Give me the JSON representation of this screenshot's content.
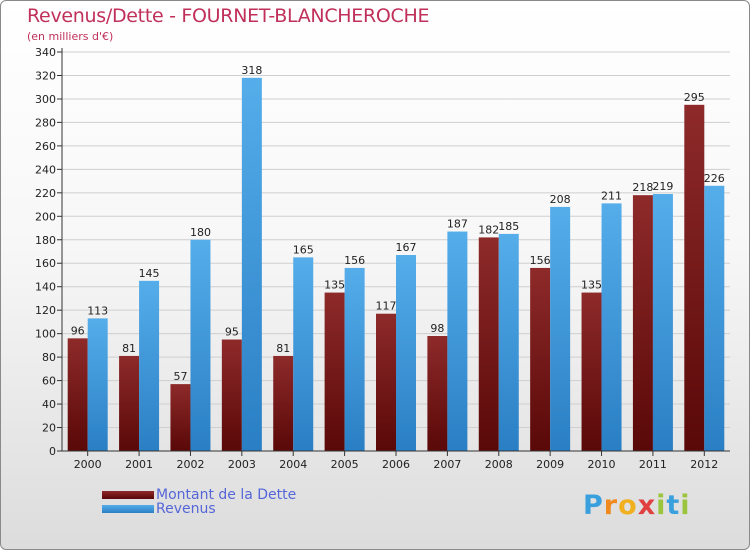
{
  "header": {
    "title": "Revenus/Dette - FOURNET-BLANCHEROCHE",
    "subtitle": "(en milliers d'€)"
  },
  "colors": {
    "dette": "#7a1818",
    "revenus": "#3f9be0",
    "title": "#c0305a",
    "legend_text": "#5566d8"
  },
  "chart_data": {
    "type": "bar",
    "title": "Revenus/Dette - FOURNET-BLANCHEROCHE",
    "ylabel": "(en milliers d'€)",
    "xlabel": "",
    "categories": [
      "2000",
      "2001",
      "2002",
      "2003",
      "2004",
      "2005",
      "2006",
      "2007",
      "2008",
      "2009",
      "2010",
      "2011",
      "2012"
    ],
    "series": [
      {
        "name": "Montant de la Dette",
        "values": [
          96,
          81,
          57,
          95,
          81,
          135,
          117,
          98,
          182,
          156,
          135,
          218,
          295
        ]
      },
      {
        "name": "Revenus",
        "values": [
          113,
          145,
          180,
          318,
          165,
          156,
          167,
          187,
          185,
          208,
          211,
          219,
          226
        ]
      }
    ],
    "ylim": [
      0,
      340
    ],
    "ystep": 20,
    "grid": true,
    "legend_position": "bottom-left"
  },
  "legend": {
    "items": [
      {
        "label": "Montant de la Dette"
      },
      {
        "label": "Revenus"
      }
    ]
  },
  "logo": {
    "letters": [
      "P",
      "r",
      "o",
      "x",
      "i",
      "t",
      "i"
    ],
    "colors": [
      "#3aa0dd",
      "#f08a20",
      "#f0b020",
      "#e04040",
      "#9bc53d",
      "#3aa0dd",
      "#9bc53d"
    ]
  }
}
